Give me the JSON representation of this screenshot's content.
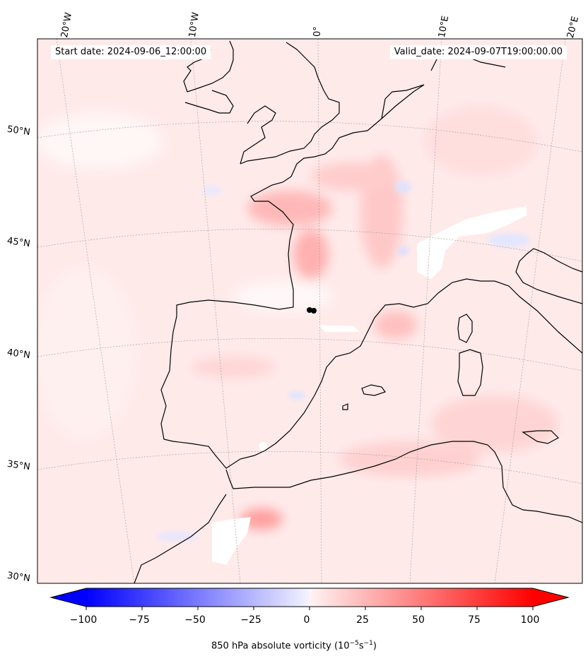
{
  "header": {
    "start_date": "Start date: 2024-09-06_12:00:00",
    "valid_date": "Valid_date: 2024-09-07T19:00:00.00"
  },
  "longitude_labels": [
    "20°W",
    "10°W",
    "0°",
    "10°E",
    "20°E"
  ],
  "latitude_labels": [
    "50°N",
    "45°N",
    "40°N",
    "35°N",
    "30°N"
  ],
  "colorbar": {
    "ticks": [
      "−100",
      "−75",
      "−50",
      "−25",
      "0",
      "25",
      "50",
      "75",
      "100"
    ],
    "min": -100,
    "max": 100,
    "label_prefix": "850 hPa absolute vorticity (10",
    "label_exp1": "−5",
    "label_mid": "s",
    "label_exp2": "−1",
    "label_suffix": ")",
    "negative_color": "#0000ff",
    "positive_color": "#ff0000"
  },
  "colors": {
    "background_field": "#ffecec",
    "coastline": "#000000"
  }
}
